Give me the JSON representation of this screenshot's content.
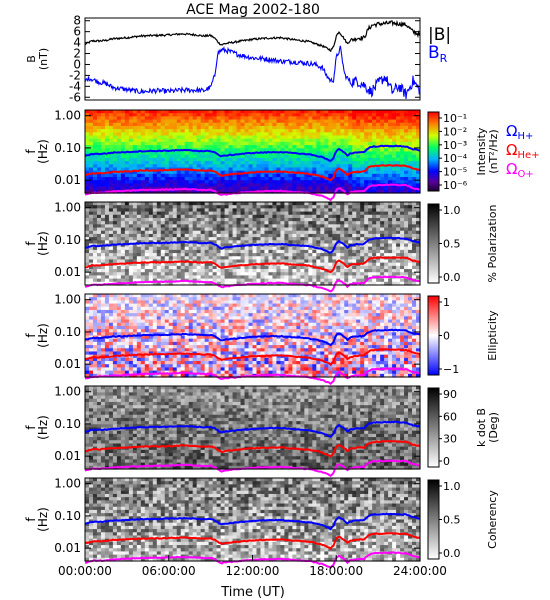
{
  "chart_data": {
    "title": "ACE Mag 2002-180",
    "type": "line+spectrogram",
    "x_axis": {
      "label": "Time (UT)",
      "ticks": [
        "00:00:00",
        "06:00:00",
        "12:00:00",
        "18:00:00",
        "24:00:00"
      ],
      "range_hours": [
        0,
        24
      ]
    },
    "field_panel": {
      "ylabel": "B\n(nT)",
      "ylim": [
        -6.5,
        8.5
      ],
      "yticks": [
        -6,
        -4,
        -2,
        0,
        2,
        4,
        6,
        8
      ],
      "series": [
        {
          "name": "|B|",
          "color": "#000000",
          "hours": [
            0,
            0.5,
            1,
            1.5,
            2,
            3,
            4,
            5,
            6,
            7,
            8,
            8.5,
            9,
            9.3,
            9.6,
            9.8,
            10,
            11,
            12,
            13,
            14,
            15,
            16,
            16.5,
            17,
            17.3,
            17.6,
            17.8,
            18,
            18.2,
            18.5,
            18.8,
            19,
            19.5,
            20,
            20.3,
            20.6,
            21,
            22,
            23,
            23.5,
            24
          ],
          "values": [
            3.7,
            4.3,
            4.3,
            4.4,
            4.7,
            4.9,
            5.2,
            5.3,
            5.4,
            5.6,
            5.4,
            5.2,
            5.3,
            4.8,
            3.9,
            3.6,
            3.8,
            4.2,
            4.6,
            4.8,
            4.9,
            4.5,
            4.2,
            3.8,
            3.4,
            3.0,
            2.6,
            3.2,
            5.2,
            6.0,
            5.0,
            3.8,
            4.4,
            4.8,
            4.9,
            6.5,
            7.2,
            7.4,
            7.6,
            7.3,
            6.0,
            5.4
          ]
        },
        {
          "name": "B_R",
          "color": "#0000ff",
          "hours": [
            0,
            0.3,
            0.6,
            1,
            1.5,
            2,
            3,
            4,
            5,
            6,
            7,
            8,
            8.5,
            9,
            9.3,
            9.5,
            9.8,
            10.2,
            11,
            12,
            13,
            14,
            15,
            16,
            16.5,
            17,
            17.3,
            17.6,
            17.8,
            18,
            18.3,
            18.6,
            19,
            19.5,
            20,
            20.5,
            21,
            21.5,
            22,
            22.5,
            23,
            23.5,
            24
          ],
          "values": [
            -3.0,
            -2.5,
            -2.8,
            -3.2,
            -3.5,
            -4.2,
            -4.6,
            -5.0,
            -4.8,
            -4.9,
            -4.7,
            -4.7,
            -4.8,
            -4.2,
            -2.0,
            2.0,
            2.7,
            2.5,
            1.8,
            1.2,
            1.0,
            0.6,
            0.5,
            0.2,
            0.0,
            -0.6,
            -2.0,
            -3.0,
            -2.8,
            1.2,
            3.0,
            -1.8,
            -3.2,
            -3.0,
            -3.8,
            -5.0,
            -3.5,
            -2.2,
            -5.0,
            -4.0,
            -5.5,
            -3.0,
            -4.8
          ]
        }
      ],
      "legend": [
        "|B|",
        "B"
      ],
      "legend_subscript": "R"
    },
    "spectral_panels": [
      {
        "id": "intensity",
        "ylabel": "f\n(Hz)",
        "colorbar": {
          "label": "Intensity\n(nT²/Hz)",
          "colormap": "rainbow",
          "ticks": [
            "10⁻¹",
            "10⁻²",
            "10⁻³",
            "10⁻⁴",
            "10⁻⁵",
            "10⁻⁶"
          ]
        }
      },
      {
        "id": "polarization",
        "ylabel": "f\n(Hz)",
        "colorbar": {
          "label": "% Polarization",
          "colormap": "gray",
          "ticks": [
            "1.0",
            "0.5",
            "0.0"
          ]
        }
      },
      {
        "id": "ellipticity",
        "ylabel": "f\n(Hz)",
        "colorbar": {
          "label": "Ellipticity",
          "colormap": "bwr",
          "ticks": [
            "1",
            "0",
            "−1"
          ]
        }
      },
      {
        "id": "kdotb",
        "ylabel": "f\n(Hz)",
        "colorbar": {
          "label": "k dot B\n(Deg)",
          "colormap": "gray",
          "ticks": [
            "90",
            "60",
            "30",
            "0"
          ]
        }
      },
      {
        "id": "coherency",
        "ylabel": "f\n(Hz)",
        "colorbar": {
          "label": "Coherency",
          "colormap": "gray",
          "ticks": [
            "1.0",
            "0.5",
            "0.0"
          ]
        }
      }
    ],
    "freq_axis": {
      "ticks": [
        "1.00",
        "0.10",
        "0.01"
      ],
      "log": true,
      "range_hz": [
        0.004,
        1.5
      ]
    },
    "gyro_lines": [
      {
        "name": "H+",
        "color": "#0000ff",
        "scale": 1.0
      },
      {
        "name": "He+",
        "color": "#ff0000",
        "scale": 0.25
      },
      {
        "name": "O+",
        "color": "#ff00ff",
        "scale": 0.0625
      }
    ],
    "gyro_legend_symbol": "Ω"
  }
}
